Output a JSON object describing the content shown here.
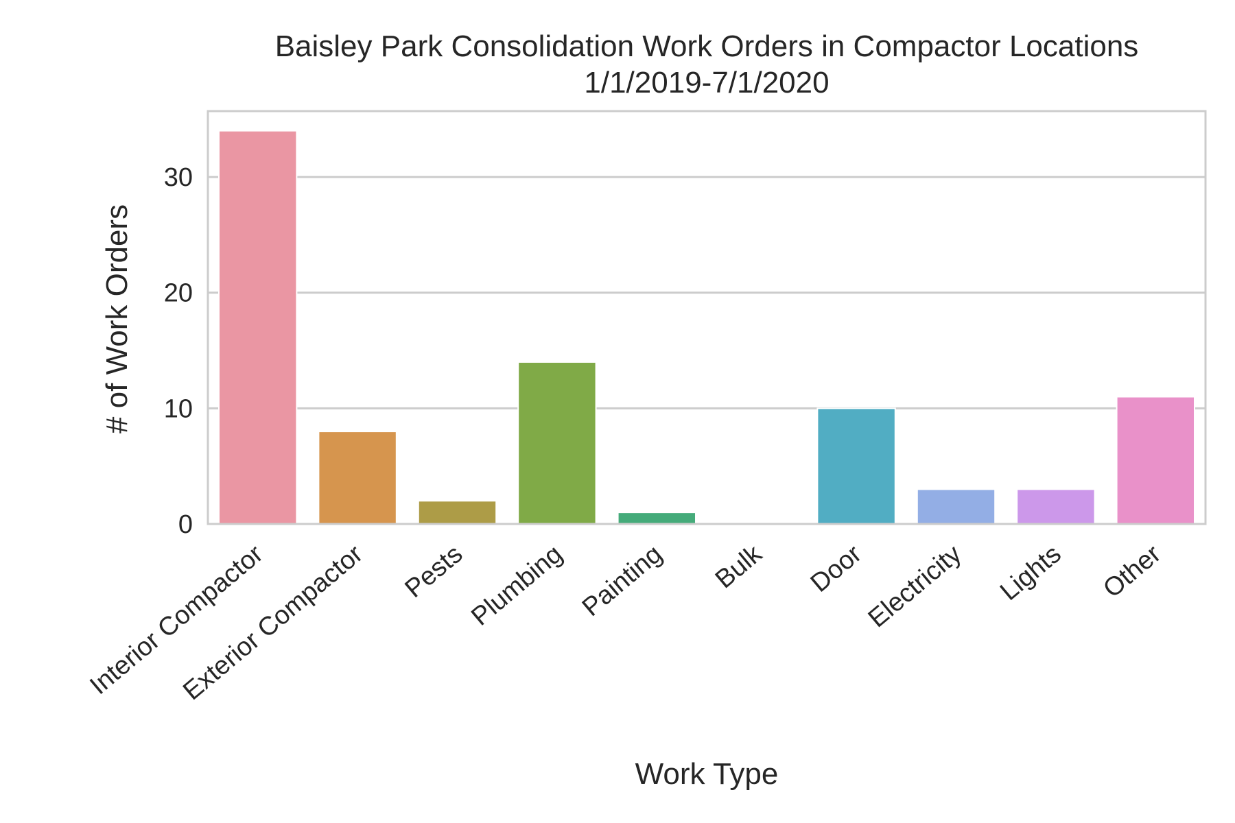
{
  "chart_data": {
    "type": "bar",
    "title": "Baisley Park Consolidation Work Orders in Compactor Locations",
    "subtitle": "1/1/2019-7/1/2020",
    "xlabel": "Work Type",
    "ylabel": "# of Work Orders",
    "ylim": [
      0,
      35.7
    ],
    "yticks": [
      0,
      10,
      20,
      30
    ],
    "grid": "horizontal",
    "categories": [
      "Interior Compactor",
      "Exterior Compactor",
      "Pests",
      "Plumbing",
      "Painting",
      "Bulk",
      "Door",
      "Electricity",
      "Lights",
      "Other"
    ],
    "values": [
      34,
      8,
      2,
      14,
      1,
      0,
      10,
      3,
      3,
      11
    ],
    "colors": [
      "#ea96a3",
      "#d6954e",
      "#ad9c47",
      "#80aa47",
      "#45ab7a",
      "#48ad99",
      "#51adc3",
      "#93aee5",
      "#cc98ea",
      "#e991c9"
    ]
  }
}
